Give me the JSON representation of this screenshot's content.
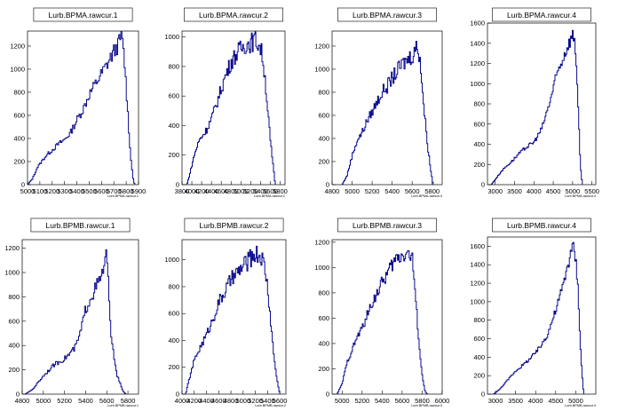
{
  "colors": {
    "line": "#0a0a8c",
    "axis": "#000000",
    "background": "#ffffff"
  },
  "chart_data": [
    {
      "type": "histogram",
      "title": "Lurb.BPMA.rawcur.1",
      "xlabel": "Lurb.BPMA.rawcur.1",
      "xlim": [
        5000,
        5900
      ],
      "ylim": [
        0,
        1330
      ],
      "xticks": [
        5000,
        5100,
        5200,
        5300,
        5400,
        5500,
        5600,
        5700,
        5800,
        5900
      ],
      "yticks": [
        0,
        200,
        400,
        600,
        800,
        1000,
        1200
      ],
      "anchors": [
        [
          5000,
          0
        ],
        [
          5040,
          50
        ],
        [
          5080,
          150
        ],
        [
          5150,
          250
        ],
        [
          5250,
          350
        ],
        [
          5300,
          390
        ],
        [
          5350,
          450
        ],
        [
          5400,
          560
        ],
        [
          5450,
          650
        ],
        [
          5500,
          780
        ],
        [
          5550,
          870
        ],
        [
          5600,
          960
        ],
        [
          5650,
          1050
        ],
        [
          5700,
          1150
        ],
        [
          5740,
          1220
        ],
        [
          5760,
          1290
        ],
        [
          5780,
          1150
        ],
        [
          5800,
          850
        ],
        [
          5820,
          500
        ],
        [
          5840,
          200
        ],
        [
          5860,
          30
        ],
        [
          5870,
          0
        ]
      ],
      "noise": 0.06
    },
    {
      "type": "histogram",
      "title": "Lurb.BPMA.rawcur.2",
      "xlabel": "Lurb.BPMA.rawcur.2",
      "xlim": [
        3800,
        5900
      ],
      "ylim": [
        0,
        1040
      ],
      "xticks": [
        3800,
        4000,
        4200,
        4400,
        4600,
        4800,
        5000,
        5200,
        5400,
        5600,
        5800
      ],
      "yticks": [
        0,
        200,
        400,
        600,
        800,
        1000
      ],
      "anchors": [
        [
          3900,
          0
        ],
        [
          3950,
          60
        ],
        [
          4050,
          200
        ],
        [
          4150,
          300
        ],
        [
          4300,
          370
        ],
        [
          4400,
          450
        ],
        [
          4500,
          540
        ],
        [
          4600,
          650
        ],
        [
          4700,
          750
        ],
        [
          4800,
          830
        ],
        [
          4900,
          880
        ],
        [
          5000,
          920
        ],
        [
          5100,
          950
        ],
        [
          5200,
          960
        ],
        [
          5300,
          980
        ],
        [
          5400,
          930
        ],
        [
          5450,
          850
        ],
        [
          5500,
          700
        ],
        [
          5550,
          500
        ],
        [
          5600,
          300
        ],
        [
          5650,
          150
        ],
        [
          5700,
          0
        ]
      ],
      "noise": 0.07
    },
    {
      "type": "histogram",
      "title": "Lurb.BPMA.rawcur.3",
      "xlabel": "Lurb.BPMA.rawcur.3",
      "xlim": [
        4800,
        5900
      ],
      "ylim": [
        0,
        1330
      ],
      "xticks": [
        4800,
        5000,
        5200,
        5400,
        5600,
        5800
      ],
      "yticks": [
        0,
        200,
        400,
        600,
        800,
        1000,
        1200
      ],
      "anchors": [
        [
          4900,
          0
        ],
        [
          4950,
          80
        ],
        [
          5000,
          250
        ],
        [
          5050,
          380
        ],
        [
          5100,
          450
        ],
        [
          5150,
          550
        ],
        [
          5200,
          630
        ],
        [
          5250,
          720
        ],
        [
          5300,
          800
        ],
        [
          5350,
          850
        ],
        [
          5400,
          920
        ],
        [
          5450,
          980
        ],
        [
          5500,
          1040
        ],
        [
          5550,
          1080
        ],
        [
          5600,
          1120
        ],
        [
          5650,
          1200
        ],
        [
          5680,
          1100
        ],
        [
          5700,
          850
        ],
        [
          5720,
          650
        ],
        [
          5760,
          300
        ],
        [
          5790,
          100
        ],
        [
          5810,
          0
        ]
      ],
      "noise": 0.07
    },
    {
      "type": "histogram",
      "title": "Lurb.BPMA.rawcur.4",
      "xlabel": "Lurb.BPMA.rawcur.4",
      "xlim": [
        2800,
        5600
      ],
      "ylim": [
        0,
        1600
      ],
      "xticks": [
        3000,
        3500,
        4000,
        4500,
        5000,
        5500
      ],
      "yticks": [
        0,
        200,
        400,
        600,
        800,
        1000,
        1200,
        1400,
        1600
      ],
      "anchors": [
        [
          2900,
          0
        ],
        [
          3000,
          50
        ],
        [
          3200,
          150
        ],
        [
          3400,
          220
        ],
        [
          3600,
          300
        ],
        [
          3800,
          370
        ],
        [
          4000,
          420
        ],
        [
          4200,
          550
        ],
        [
          4400,
          800
        ],
        [
          4500,
          950
        ],
        [
          4600,
          1100
        ],
        [
          4700,
          1200
        ],
        [
          4800,
          1300
        ],
        [
          4900,
          1400
        ],
        [
          5000,
          1480
        ],
        [
          5050,
          1450
        ],
        [
          5100,
          1200
        ],
        [
          5150,
          700
        ],
        [
          5200,
          200
        ],
        [
          5250,
          0
        ]
      ],
      "noise": 0.05
    },
    {
      "type": "histogram",
      "title": "Lurb.BPMB.rawcur.1",
      "xlabel": "Lurb.BPMB.rawcur.1",
      "xlim": [
        4800,
        5900
      ],
      "ylim": [
        0,
        1270
      ],
      "xticks": [
        4800,
        5000,
        5200,
        5400,
        5600,
        5800
      ],
      "yticks": [
        0,
        200,
        400,
        600,
        800,
        1000,
        1200
      ],
      "anchors": [
        [
          4830,
          0
        ],
        [
          4900,
          40
        ],
        [
          5000,
          150
        ],
        [
          5100,
          240
        ],
        [
          5200,
          290
        ],
        [
          5300,
          380
        ],
        [
          5350,
          500
        ],
        [
          5400,
          700
        ],
        [
          5450,
          800
        ],
        [
          5500,
          880
        ],
        [
          5550,
          960
        ],
        [
          5580,
          1080
        ],
        [
          5600,
          1150
        ],
        [
          5620,
          800
        ],
        [
          5650,
          400
        ],
        [
          5700,
          150
        ],
        [
          5750,
          30
        ],
        [
          5780,
          0
        ]
      ],
      "noise": 0.07
    },
    {
      "type": "histogram",
      "title": "Lurb.BPMB.rawcur.2",
      "xlabel": "Lurb.BPMB.rawcur.2",
      "xlim": [
        4000,
        5700
      ],
      "ylim": [
        0,
        1150
      ],
      "xticks": [
        4000,
        4200,
        4400,
        4600,
        4800,
        5000,
        5200,
        5400,
        5600
      ],
      "yticks": [
        0,
        200,
        400,
        600,
        800,
        1000
      ],
      "anchors": [
        [
          4060,
          0
        ],
        [
          4100,
          80
        ],
        [
          4200,
          250
        ],
        [
          4300,
          350
        ],
        [
          4400,
          440
        ],
        [
          4500,
          550
        ],
        [
          4600,
          680
        ],
        [
          4700,
          760
        ],
        [
          4800,
          850
        ],
        [
          4900,
          900
        ],
        [
          5000,
          950
        ],
        [
          5100,
          1000
        ],
        [
          5200,
          1050
        ],
        [
          5300,
          1020
        ],
        [
          5350,
          950
        ],
        [
          5400,
          800
        ],
        [
          5450,
          550
        ],
        [
          5500,
          300
        ],
        [
          5550,
          120
        ],
        [
          5600,
          0
        ]
      ],
      "noise": 0.07
    },
    {
      "type": "histogram",
      "title": "Lurb.BPMB.rawcur.3",
      "xlabel": "Lurb.BPMB.rawcur.3",
      "xlim": [
        4900,
        6000
      ],
      "ylim": [
        0,
        1220
      ],
      "xticks": [
        5000,
        5200,
        5400,
        5600,
        5800,
        6000
      ],
      "yticks": [
        0,
        200,
        400,
        600,
        800,
        1000,
        1200
      ],
      "anchors": [
        [
          4950,
          0
        ],
        [
          5000,
          80
        ],
        [
          5050,
          250
        ],
        [
          5100,
          350
        ],
        [
          5150,
          450
        ],
        [
          5200,
          520
        ],
        [
          5250,
          620
        ],
        [
          5300,
          720
        ],
        [
          5350,
          800
        ],
        [
          5400,
          880
        ],
        [
          5450,
          950
        ],
        [
          5500,
          1020
        ],
        [
          5550,
          1080
        ],
        [
          5600,
          1100
        ],
        [
          5650,
          1120
        ],
        [
          5700,
          1080
        ],
        [
          5720,
          900
        ],
        [
          5750,
          600
        ],
        [
          5780,
          300
        ],
        [
          5800,
          150
        ],
        [
          5830,
          20
        ],
        [
          5850,
          0
        ]
      ],
      "noise": 0.06
    },
    {
      "type": "histogram",
      "title": "Lurb.BPMB.rawcur.4",
      "xlabel": "Lurb.BPMB.rawcur.4",
      "xlim": [
        2800,
        5500
      ],
      "ylim": [
        0,
        1700
      ],
      "xticks": [
        3000,
        3500,
        4000,
        4500,
        5000
      ],
      "yticks": [
        0,
        200,
        400,
        600,
        800,
        1000,
        1200,
        1400,
        1600
      ],
      "anchors": [
        [
          2950,
          0
        ],
        [
          3100,
          50
        ],
        [
          3300,
          150
        ],
        [
          3500,
          250
        ],
        [
          3700,
          320
        ],
        [
          3900,
          400
        ],
        [
          4100,
          500
        ],
        [
          4300,
          650
        ],
        [
          4500,
          900
        ],
        [
          4600,
          1050
        ],
        [
          4700,
          1200
        ],
        [
          4800,
          1400
        ],
        [
          4900,
          1550
        ],
        [
          4950,
          1600
        ],
        [
          5000,
          1450
        ],
        [
          5050,
          1200
        ],
        [
          5100,
          700
        ],
        [
          5150,
          250
        ],
        [
          5200,
          0
        ]
      ],
      "noise": 0.05
    }
  ]
}
